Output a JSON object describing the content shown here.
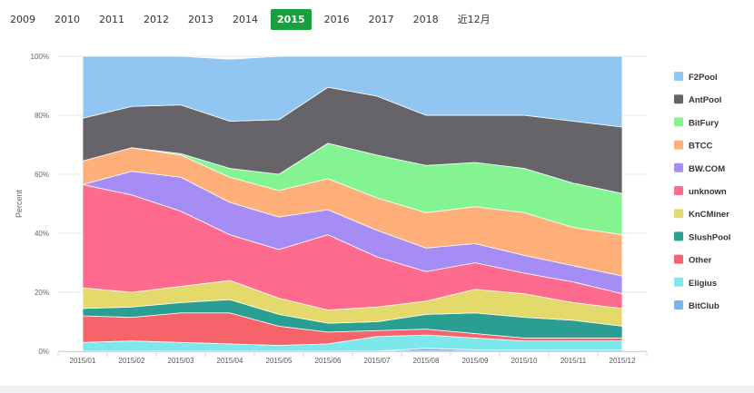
{
  "year_tabs": [
    "2009",
    "2010",
    "2011",
    "2012",
    "2013",
    "2014",
    "2015",
    "2016",
    "2017",
    "2018",
    "近12月"
  ],
  "active_year": "2015",
  "chart_data": {
    "type": "area",
    "stacked": true,
    "ylabel": "Percent",
    "xlabel": "",
    "ylim": [
      0,
      100
    ],
    "y_ticks": [
      "0%",
      "20%",
      "40%",
      "60%",
      "80%",
      "100%"
    ],
    "categories": [
      "2015/01",
      "2015/02",
      "2015/03",
      "2015/04",
      "2015/05",
      "2015/06",
      "2015/07",
      "2015/08",
      "2015/09",
      "2015/10",
      "2015/11",
      "2015/12"
    ],
    "series": [
      {
        "name": "BitClub",
        "color": "#7cb5ec",
        "values": [
          0,
          0,
          0,
          0,
          0,
          0,
          0,
          1,
          0.5,
          0.5,
          0.5,
          0.5
        ]
      },
      {
        "name": "Eligius",
        "color": "#7de8ec",
        "values": [
          3,
          3.5,
          3,
          2.5,
          2,
          2.5,
          5,
          4.5,
          4,
          3,
          3,
          3
        ]
      },
      {
        "name": "Other",
        "color": "#f7636b",
        "values": [
          9,
          8,
          10,
          10.5,
          6.5,
          4,
          2,
          2,
          1.5,
          1,
          1,
          1
        ]
      },
      {
        "name": "SlushPool",
        "color": "#2b9e92",
        "values": [
          2.5,
          3.5,
          3.5,
          4.5,
          4,
          3,
          3,
          5,
          7,
          7,
          6,
          4
        ]
      },
      {
        "name": "KnCMiner",
        "color": "#e4d96b",
        "values": [
          7,
          5,
          5.5,
          6.5,
          5.5,
          4.5,
          5,
          4.5,
          8,
          8,
          6,
          6
        ]
      },
      {
        "name": "unknown",
        "color": "#ff6b8e",
        "values": [
          35,
          33,
          25.5,
          15.5,
          16.5,
          25.5,
          17,
          10,
          9,
          7,
          7,
          5
        ]
      },
      {
        "name": "BW.COM",
        "color": "#a58df5",
        "values": [
          0,
          8,
          11.5,
          11,
          11,
          8.5,
          9,
          8,
          6.5,
          6,
          5.5,
          6
        ]
      },
      {
        "name": "BTCC",
        "color": "#ffb07a",
        "values": [
          8,
          8,
          7.5,
          8.5,
          9,
          10.5,
          11,
          12,
          12.5,
          14.5,
          13,
          14
        ]
      },
      {
        "name": "BitFury",
        "color": "#84f493",
        "values": [
          0,
          0,
          0.5,
          3,
          5.5,
          12,
          14.5,
          16,
          15,
          15,
          15,
          14
        ]
      },
      {
        "name": "AntPool",
        "color": "#666468",
        "values": [
          14.5,
          14,
          16.5,
          16,
          18.5,
          19,
          20,
          17,
          16,
          18,
          21,
          22.5
        ]
      },
      {
        "name": "F2Pool",
        "color": "#91c5f2",
        "values": [
          21,
          17,
          16.5,
          21,
          21.5,
          10.5,
          14.5,
          20,
          20,
          20,
          22,
          24
        ]
      }
    ],
    "legend_order": [
      "F2Pool",
      "AntPool",
      "BitFury",
      "BTCC",
      "BW.COM",
      "unknown",
      "KnCMiner",
      "SlushPool",
      "Other",
      "Eligius",
      "BitClub"
    ],
    "legend_position": "right"
  }
}
